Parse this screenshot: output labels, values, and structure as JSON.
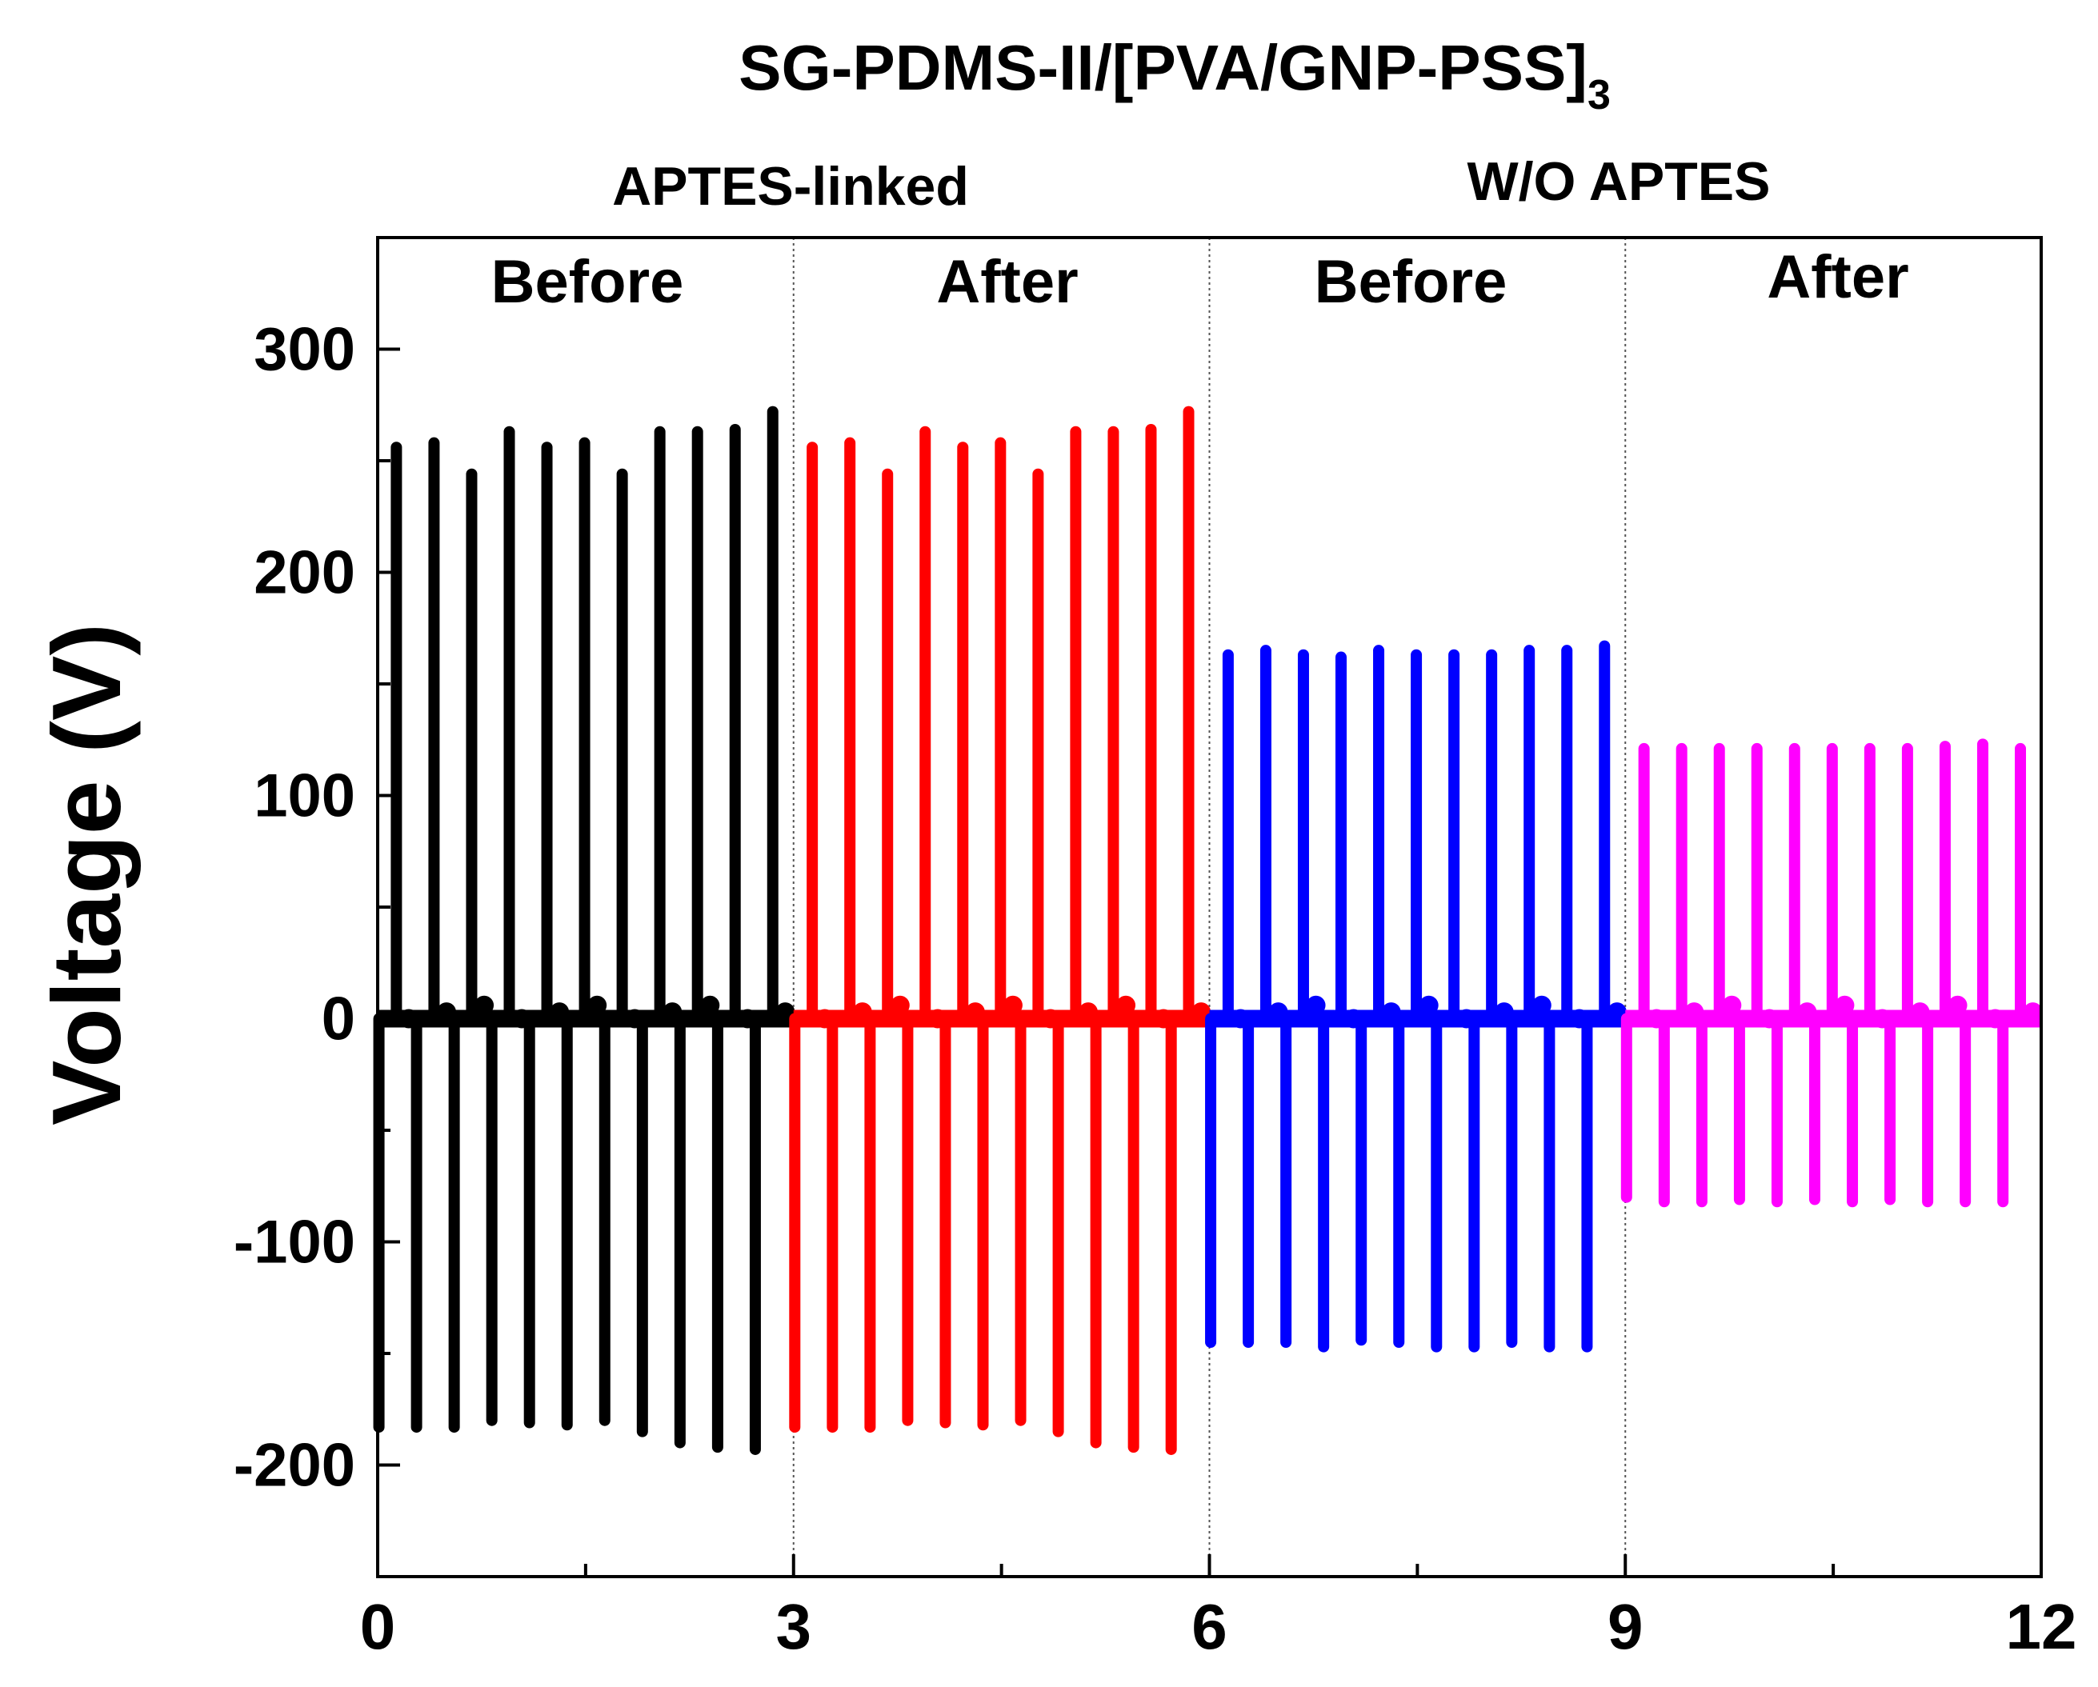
{
  "chart_data": {
    "type": "line",
    "title": "SG-PDMS-II/[PVA/GNP-PSS]",
    "title_subscript": "3",
    "xlabel": "",
    "ylabel": "Voltage (V)",
    "xlim": [
      0,
      12
    ],
    "ylim": [
      -250,
      350
    ],
    "x_ticks": [
      0,
      3,
      6,
      9,
      12
    ],
    "x_tick_labels": [
      "0",
      "3",
      "6",
      "9",
      "12"
    ],
    "y_ticks": [
      -200,
      -100,
      0,
      100,
      200,
      300
    ],
    "y_tick_labels": [
      "-200",
      "-100",
      "0",
      "100",
      "200",
      "300"
    ],
    "grid": false,
    "dividers": [
      3,
      6,
      9
    ],
    "group_labels": [
      {
        "label": "APTES-linked",
        "x_range": [
          0,
          6
        ]
      },
      {
        "label": "W/O APTES",
        "x_range": [
          6,
          12
        ]
      }
    ],
    "series": [
      {
        "name": "APTES-linked Before",
        "section_label": "Before",
        "color": "#000000",
        "x_range": [
          0,
          3
        ],
        "peaks": [
          256,
          258,
          244,
          263,
          256,
          258,
          244,
          263,
          263,
          264,
          272
        ],
        "troughs": [
          -183,
          -183,
          -183,
          -180,
          -181,
          -182,
          -180,
          -185,
          -190,
          -192,
          -193
        ]
      },
      {
        "name": "APTES-linked After",
        "section_label": "After",
        "color": "#ff0000",
        "x_range": [
          3,
          6
        ],
        "peaks": [
          256,
          258,
          244,
          263,
          256,
          258,
          244,
          263,
          263,
          264,
          272
        ],
        "troughs": [
          -183,
          -183,
          -183,
          -180,
          -181,
          -182,
          -180,
          -185,
          -190,
          -192,
          -193
        ]
      },
      {
        "name": "W/O APTES Before",
        "section_label": "Before",
        "color": "#0000ff",
        "x_range": [
          6,
          9
        ],
        "peaks": [
          163,
          165,
          163,
          162,
          165,
          163,
          163,
          163,
          165,
          165,
          167
        ],
        "troughs": [
          -145,
          -145,
          -145,
          -147,
          -144,
          -145,
          -147,
          -147,
          -145,
          -147,
          -147
        ]
      },
      {
        "name": "W/O APTES After",
        "section_label": "After",
        "color": "#ff00ff",
        "x_range": [
          9,
          12
        ],
        "peaks": [
          121,
          121,
          121,
          121,
          121,
          121,
          121,
          121,
          122,
          123,
          121
        ],
        "troughs": [
          -80,
          -82,
          -82,
          -81,
          -82,
          -81,
          -82,
          -81,
          -82,
          -82,
          -82
        ]
      }
    ]
  }
}
